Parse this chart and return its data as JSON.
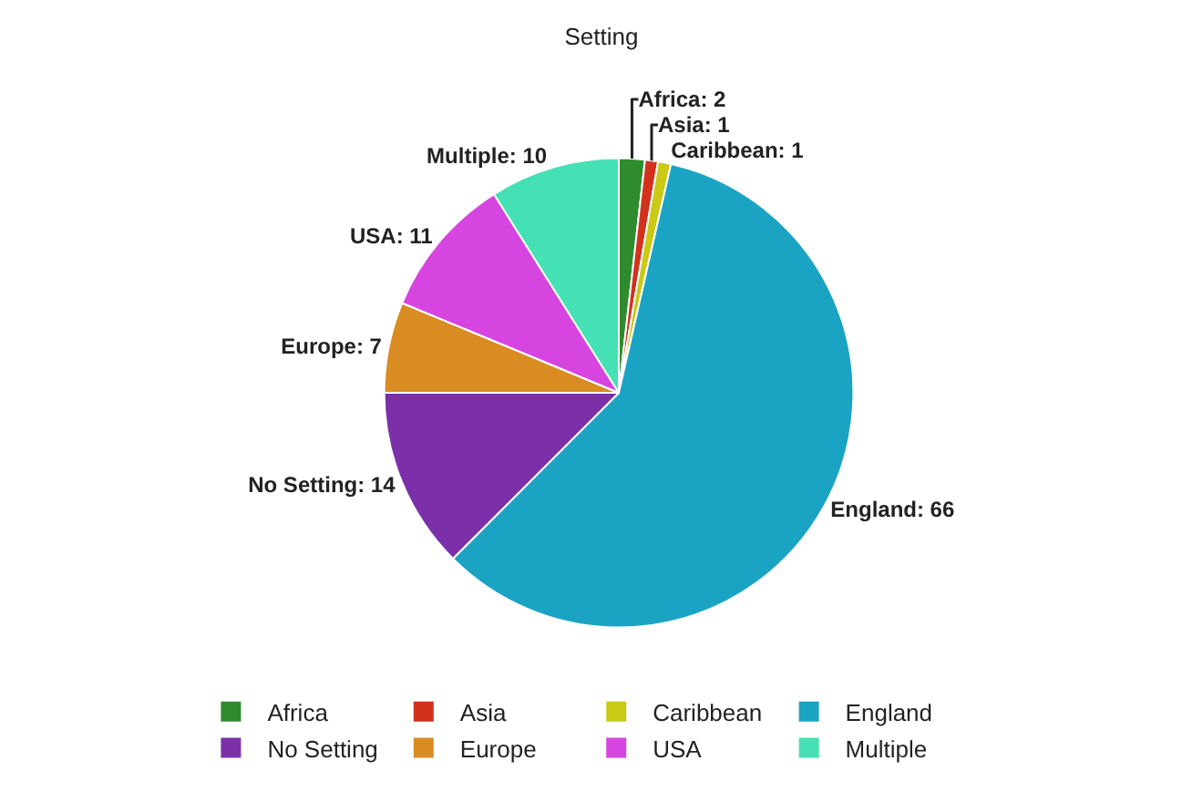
{
  "chart_data": {
    "type": "pie",
    "title": "Setting",
    "categories": [
      "Africa",
      "Asia",
      "Caribbean",
      "England",
      "No Setting",
      "Europe",
      "USA",
      "Multiple"
    ],
    "values": [
      2,
      1,
      1,
      66,
      14,
      7,
      11,
      10
    ],
    "value_labels": [
      "Africa: 2",
      "Asia: 1",
      "Caribbean: 1",
      "England: 66",
      "No Setting: 14",
      "Europe: 7",
      "USA: 11",
      "Multiple: 10"
    ],
    "colors": [
      "#2e8b2e",
      "#d2321c",
      "#c9c916",
      "#1ba3c4",
      "#7b30aa",
      "#d98c22",
      "#d645e0",
      "#45e0b4"
    ],
    "legend": "bottom"
  }
}
